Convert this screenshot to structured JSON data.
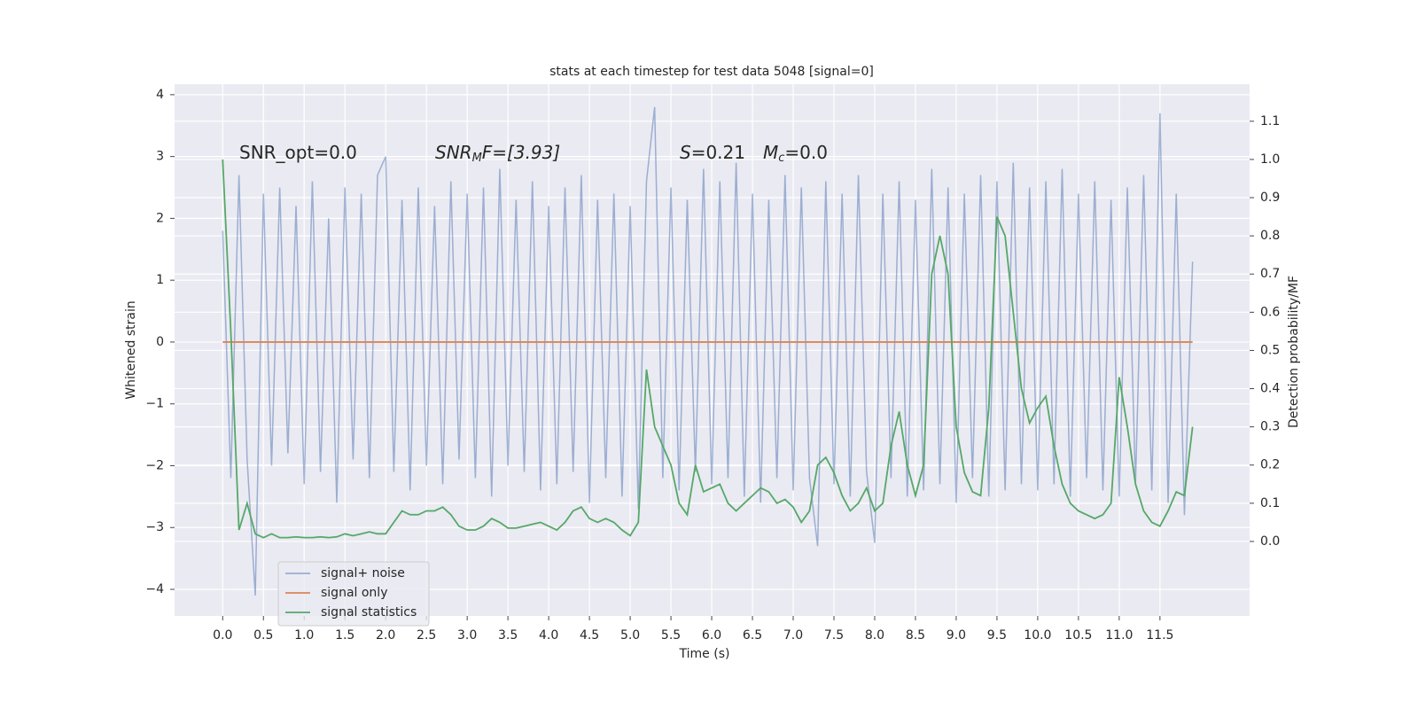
{
  "chart_data": {
    "type": "line",
    "title": "stats at each timestep for test data 5048 [signal=0]",
    "x_label": "Time (s)",
    "y_label": "Whitened strain",
    "y2_label": "Detection probability/MF",
    "annotations": [
      [
        "SNR_opt=0.0"
      ],
      [
        "SNR",
        "M",
        "F=[3.93]"
      ],
      [
        "S",
        "=0.21",
        "M",
        "c",
        "=0.0"
      ]
    ],
    "grid": true,
    "legend": "lower left",
    "xlim": [
      -0.59,
      12.6
    ],
    "ylim": [
      -4.43,
      4.17
    ],
    "y2lim": [
      -0.195,
      1.197
    ],
    "xticks": [
      {
        "value": 0,
        "label": "0.0"
      },
      {
        "value": 0.5,
        "label": "0.5"
      },
      {
        "value": 1,
        "label": "1.0"
      },
      {
        "value": 1.5,
        "label": "1.5"
      },
      {
        "value": 2,
        "label": "2.0"
      },
      {
        "value": 2.5,
        "label": "2.5"
      },
      {
        "value": 3,
        "label": "3.0"
      },
      {
        "value": 3.5,
        "label": "3.5"
      },
      {
        "value": 4,
        "label": "4.0"
      },
      {
        "value": 4.5,
        "label": "4.5"
      },
      {
        "value": 5,
        "label": "5.0"
      },
      {
        "value": 5.5,
        "label": "5.5"
      },
      {
        "value": 6,
        "label": "6.0"
      },
      {
        "value": 6.5,
        "label": "6.5"
      },
      {
        "value": 7,
        "label": "7.0"
      },
      {
        "value": 7.5,
        "label": "7.5"
      },
      {
        "value": 8,
        "label": "8.0"
      },
      {
        "value": 8.5,
        "label": "8.5"
      },
      {
        "value": 9,
        "label": "9.0"
      },
      {
        "value": 9.5,
        "label": "9.5"
      },
      {
        "value": 10,
        "label": "10.0"
      },
      {
        "value": 10.5,
        "label": "10.5"
      },
      {
        "value": 11,
        "label": "11.0"
      },
      {
        "value": 11.5,
        "label": "11.5"
      }
    ],
    "yticks": [
      {
        "value": -4,
        "label": "−4"
      },
      {
        "value": -3,
        "label": "−3"
      },
      {
        "value": -2,
        "label": "−2"
      },
      {
        "value": -1,
        "label": "−1"
      },
      0,
      1,
      2,
      3,
      4
    ],
    "y2ticks": [
      {
        "value": 0,
        "label": "0.0"
      },
      {
        "value": 0.1,
        "label": "0.1"
      },
      {
        "value": 0.2,
        "label": "0.2"
      },
      {
        "value": 0.3,
        "label": "0.3"
      },
      {
        "value": 0.4,
        "label": "0.4"
      },
      {
        "value": 0.5,
        "label": "0.5"
      },
      {
        "value": 0.6,
        "label": "0.6"
      },
      {
        "value": 0.7,
        "label": "0.7"
      },
      {
        "value": 0.8,
        "label": "0.8"
      },
      {
        "value": 0.9,
        "label": "0.9"
      },
      {
        "value": 1,
        "label": "1.0"
      },
      {
        "value": 1.1,
        "label": "1.1"
      }
    ],
    "x": [
      0,
      0.1,
      0.2,
      0.3,
      0.4,
      0.5,
      0.6,
      0.7,
      0.8,
      0.9,
      1,
      1.1,
      1.2,
      1.3,
      1.4,
      1.5,
      1.6,
      1.7,
      1.8,
      1.9,
      2,
      2.1,
      2.2,
      2.3,
      2.4,
      2.5,
      2.6,
      2.7,
      2.8,
      2.9,
      3,
      3.1,
      3.2,
      3.3,
      3.4,
      3.5,
      3.6,
      3.7,
      3.8,
      3.9,
      4,
      4.1,
      4.2,
      4.3,
      4.4,
      4.5,
      4.6,
      4.7,
      4.8,
      4.9,
      5,
      5.1,
      5.2,
      5.3,
      5.4,
      5.5,
      5.6,
      5.7,
      5.8,
      5.9,
      6,
      6.1,
      6.2,
      6.3,
      6.4,
      6.5,
      6.6,
      6.7,
      6.8,
      6.9,
      7,
      7.1,
      7.2,
      7.3,
      7.4,
      7.5,
      7.6,
      7.7,
      7.8,
      7.9,
      8,
      8.1,
      8.2,
      8.3,
      8.4,
      8.5,
      8.6,
      8.7,
      8.8,
      8.9,
      9,
      9.1,
      9.2,
      9.3,
      9.4,
      9.5,
      9.6,
      9.7,
      9.8,
      9.9,
      10,
      10.1,
      10.2,
      10.3,
      10.4,
      10.5,
      10.6,
      10.7,
      10.8,
      10.9,
      11,
      11.1,
      11.2,
      11.3,
      11.4,
      11.5,
      11.6,
      11.7,
      11.8,
      11.9
    ],
    "series": [
      {
        "name": "signal+ noise",
        "color": "#4c72b0",
        "values": [
          1.8,
          -2.2,
          2.7,
          -1.9,
          -4.1,
          2.4,
          -2.0,
          2.5,
          -1.8,
          2.2,
          -2.3,
          2.6,
          -2.1,
          2.0,
          -2.6,
          2.5,
          -1.9,
          2.4,
          -2.2,
          2.7,
          3.0,
          -2.1,
          2.3,
          -2.4,
          2.5,
          -2.0,
          2.2,
          -2.3,
          2.6,
          -1.9,
          2.4,
          -2.2,
          2.5,
          -2.5,
          2.8,
          -2.0,
          2.3,
          -2.1,
          2.6,
          -2.4,
          2.2,
          -2.3,
          2.5,
          -2.1,
          2.7,
          -2.6,
          2.3,
          -2.2,
          2.4,
          -2.5,
          2.2,
          -2.7,
          2.6,
          3.8,
          -2.2,
          2.5,
          -2.4,
          2.3,
          -2.1,
          2.8,
          -2.3,
          2.6,
          -2.2,
          2.9,
          -2.5,
          2.4,
          -2.6,
          2.3,
          -2.2,
          2.7,
          -2.4,
          2.5,
          -2.2,
          -3.3,
          2.6,
          -2.3,
          2.4,
          -2.5,
          2.7,
          -2.1,
          -3.25,
          2.4,
          -2.2,
          2.6,
          -2.5,
          2.3,
          -2.4,
          2.8,
          -2.3,
          2.5,
          -2.6,
          2.4,
          -2.2,
          2.7,
          -2.5,
          2.6,
          -2.4,
          2.9,
          -2.3,
          2.5,
          -2.4,
          2.6,
          -2.3,
          2.8,
          -2.5,
          2.4,
          -2.2,
          2.6,
          -2.4,
          2.3,
          -2.5,
          2.5,
          -2.3,
          2.7,
          -2.4,
          3.7,
          -2.6,
          2.4,
          -2.8,
          1.3
        ]
      },
      {
        "name": "signal only",
        "color": "#dd8452",
        "values": [
          0,
          0,
          0,
          0,
          0,
          0,
          0,
          0,
          0,
          0,
          0,
          0,
          0,
          0,
          0,
          0,
          0,
          0,
          0,
          0,
          0,
          0,
          0,
          0,
          0,
          0,
          0,
          0,
          0,
          0,
          0,
          0,
          0,
          0,
          0,
          0,
          0,
          0,
          0,
          0,
          0,
          0,
          0,
          0,
          0,
          0,
          0,
          0,
          0,
          0,
          0,
          0,
          0,
          0,
          0,
          0,
          0,
          0,
          0,
          0,
          0,
          0,
          0,
          0,
          0,
          0,
          0,
          0,
          0,
          0,
          0,
          0,
          0,
          0,
          0,
          0,
          0,
          0,
          0,
          0,
          0,
          0,
          0,
          0,
          0,
          0,
          0,
          0,
          0,
          0,
          0,
          0,
          0,
          0,
          0,
          0,
          0,
          0,
          0,
          0,
          0,
          0,
          0,
          0,
          0,
          0,
          0,
          0,
          0,
          0,
          0,
          0,
          0,
          0,
          0,
          0,
          0,
          0,
          0,
          0
        ]
      },
      {
        "name": "signal statistics",
        "color": "#55a868",
        "axis": "y2",
        "values": [
          1.0,
          0.55,
          0.03,
          0.1,
          0.02,
          0.01,
          0.02,
          0.01,
          0.01,
          0.012,
          0.01,
          0.01,
          0.012,
          0.01,
          0.012,
          0.02,
          0.015,
          0.02,
          0.025,
          0.02,
          0.02,
          0.05,
          0.08,
          0.07,
          0.07,
          0.08,
          0.08,
          0.09,
          0.07,
          0.04,
          0.03,
          0.03,
          0.04,
          0.06,
          0.05,
          0.035,
          0.035,
          0.04,
          0.045,
          0.05,
          0.04,
          0.03,
          0.05,
          0.08,
          0.09,
          0.06,
          0.05,
          0.06,
          0.05,
          0.03,
          0.015,
          0.05,
          0.45,
          0.3,
          0.25,
          0.2,
          0.1,
          0.07,
          0.2,
          0.13,
          0.14,
          0.15,
          0.1,
          0.08,
          0.1,
          0.12,
          0.14,
          0.13,
          0.1,
          0.11,
          0.09,
          0.05,
          0.08,
          0.2,
          0.22,
          0.18,
          0.12,
          0.08,
          0.1,
          0.14,
          0.08,
          0.1,
          0.25,
          0.34,
          0.2,
          0.12,
          0.2,
          0.7,
          0.8,
          0.7,
          0.3,
          0.18,
          0.13,
          0.12,
          0.35,
          0.85,
          0.8,
          0.6,
          0.4,
          0.31,
          0.35,
          0.38,
          0.25,
          0.15,
          0.1,
          0.08,
          0.07,
          0.06,
          0.07,
          0.1,
          0.43,
          0.3,
          0.15,
          0.08,
          0.05,
          0.04,
          0.08,
          0.13,
          0.12,
          0.3
        ]
      }
    ]
  }
}
